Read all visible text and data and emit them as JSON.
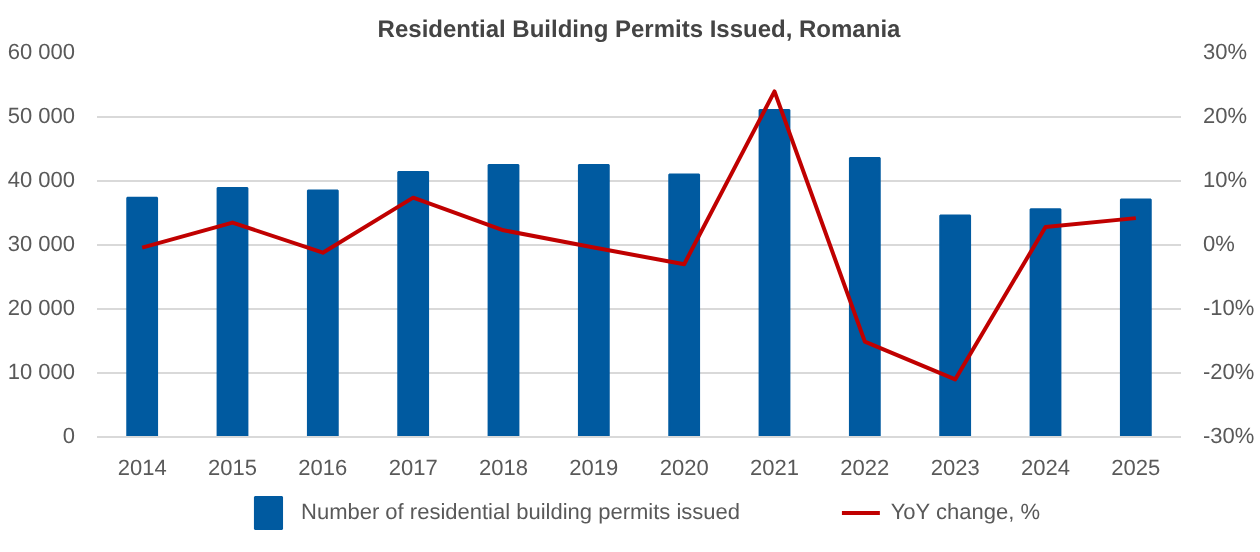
{
  "chart_data": {
    "type": "bar",
    "title": "Residential Building Permits Issued, Romania",
    "categories": [
      "2014",
      "2015",
      "2016",
      "2017",
      "2018",
      "2019",
      "2020",
      "2021",
      "2022",
      "2023",
      "2024",
      "2025"
    ],
    "series": [
      {
        "name": "Number of residential building permits issued",
        "color": "#005aa0",
        "values": [
          37400,
          38900,
          38500,
          41400,
          42500,
          42500,
          41000,
          51100,
          43600,
          34600,
          35600,
          37100
        ]
      },
      {
        "name": "YoY change, %",
        "color": "#c00000",
        "type": "line",
        "axis": "y2",
        "values": [
          -0.4,
          3.5,
          -1.2,
          7.4,
          2.3,
          -0.4,
          -3.0,
          24.0,
          -15.1,
          -21.0,
          2.8,
          4.2
        ]
      }
    ],
    "ylim": [
      0,
      60000
    ],
    "yticks": [
      0,
      {
        "value": 10000,
        "label": "10 000"
      },
      {
        "value": 20000,
        "label": "20 000"
      },
      {
        "value": 30000,
        "label": "30 000"
      },
      {
        "value": 40000,
        "label": "40 000"
      },
      {
        "value": 50000,
        "label": "50 000"
      },
      {
        "value": 60000,
        "label": "60 000"
      }
    ],
    "y2lim": [
      -30,
      30
    ],
    "y2ticks": [
      {
        "value": -30,
        "label": "-30%"
      },
      {
        "value": -20,
        "label": "-20%"
      },
      {
        "value": -10,
        "label": "-10%"
      },
      {
        "value": 0,
        "label": "0%"
      },
      {
        "value": 10,
        "label": "10%"
      },
      {
        "value": 20,
        "label": "20%"
      },
      {
        "value": 30,
        "label": "30%"
      }
    ],
    "grid": "y",
    "legend": "bottom"
  }
}
